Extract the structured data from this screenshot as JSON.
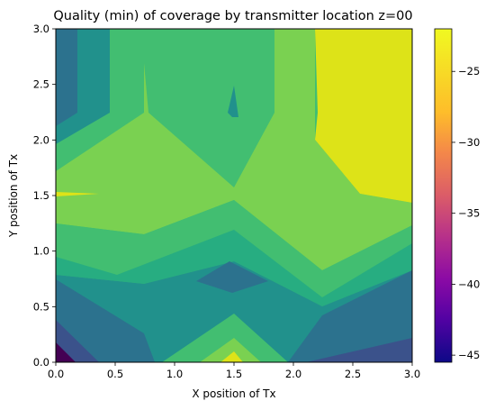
{
  "chart_data": {
    "type": "heatmap",
    "subtype": "filled-contour",
    "title": "Quality (min) of coverage by transmitter location z=00",
    "xlabel": "X position of Tx",
    "ylabel": "Y position of Tx",
    "xlim": [
      0.0,
      3.0
    ],
    "ylim": [
      0.0,
      3.0
    ],
    "x_ticks": [
      "0.0",
      "0.5",
      "1.0",
      "1.5",
      "2.0",
      "2.5",
      "3.0"
    ],
    "y_ticks": [
      "0.0",
      "0.5",
      "1.0",
      "1.5",
      "2.0",
      "2.5",
      "3.0"
    ],
    "grid": false,
    "colormap": "plasma",
    "colorbar": {
      "range": [
        -45.5,
        -22
      ],
      "ticks": [
        "-25",
        "-30",
        "-35",
        "-40",
        "-45"
      ]
    },
    "level_colors": {
      "l1": "#440154",
      "l2": "#3b528b",
      "l3": "#2c728e",
      "l4": "#21918c",
      "l5": "#27ad81",
      "l6": "#42be71",
      "l7": "#7ad151",
      "l8": "#dde318"
    },
    "grid_x": [
      0.0,
      0.75,
      1.5,
      2.25,
      3.0
    ],
    "grid_y": [
      0.0,
      0.75,
      1.5,
      2.25,
      3.0
    ],
    "z_rows_bottom_to_top": [
      [
        "l1",
        "l4",
        "l7",
        "l4",
        "l3"
      ],
      [
        "l3",
        "l5",
        "l3",
        "l4",
        "l4"
      ],
      [
        "l6",
        "l7",
        "l7",
        "l6",
        "l8"
      ],
      [
        "l4",
        "l6",
        "l5",
        "l8",
        "l8"
      ],
      [
        "l3",
        "l5",
        "l6",
        "l6",
        "l8"
      ]
    ]
  }
}
